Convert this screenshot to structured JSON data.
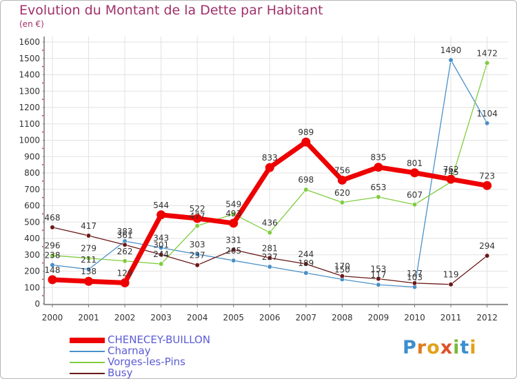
{
  "title": "Evolution du Montant de la Dette par Habitant",
  "subtitle": "(en €)",
  "brand": "Proxiti",
  "colors": {
    "title": "#a0306a",
    "legend_text": "#5b5bd6"
  },
  "chart_data": {
    "type": "line",
    "title": "Evolution du Montant de la Dette par Habitant",
    "ylabel": "(en €)",
    "xlabel": "",
    "x": [
      "2000",
      "2001",
      "2002",
      "2003",
      "2004",
      "2005",
      "2006",
      "2007",
      "2008",
      "2009",
      "2010",
      "2011",
      "2012"
    ],
    "ylim": [
      0,
      1600
    ],
    "yticks": [
      0,
      100,
      200,
      300,
      400,
      500,
      600,
      700,
      800,
      900,
      1000,
      1100,
      1200,
      1300,
      1400,
      1500,
      1600
    ],
    "legend_position": "bottom-left",
    "series": [
      {
        "name": "CHENECEY-BUILLON",
        "color": "#ee0000",
        "thick": true,
        "values": [
          148,
          138,
          129,
          544,
          522,
          493,
          833,
          989,
          756,
          835,
          801,
          762,
          723
        ],
        "labels": [
          "148",
          "138",
          "129",
          "544",
          "522",
          "493",
          "833",
          "989",
          "756",
          "835",
          "801",
          "762",
          "723"
        ]
      },
      {
        "name": "Charnay",
        "color": "#4a90c8",
        "thick": false,
        "values": [
          238,
          211,
          383,
          343,
          303,
          265,
          227,
          189,
          150,
          117,
          103,
          1490,
          1104
        ],
        "labels": [
          "238",
          "211",
          "383",
          "343",
          "303",
          "265",
          "227",
          "189",
          "150",
          "117",
          "103",
          "1490",
          "1104"
        ]
      },
      {
        "name": "Vorges-les-Pins",
        "color": "#80cc40",
        "thick": false,
        "values": [
          296,
          279,
          262,
          244,
          477,
          549,
          436,
          698,
          620,
          653,
          607,
          745,
          1472
        ],
        "labels": [
          "296",
          "279",
          "262",
          "244",
          "477",
          "549",
          "436",
          "698",
          "620",
          "653",
          "607",
          "745",
          "1472"
        ]
      },
      {
        "name": "Busy",
        "color": "#6b1818",
        "thick": false,
        "values": [
          468,
          417,
          361,
          301,
          237,
          331,
          281,
          244,
          170,
          153,
          127,
          119,
          294
        ],
        "labels": [
          "468",
          "417",
          "361",
          "301",
          "237",
          "331",
          "281",
          "244",
          "170",
          "153",
          "127",
          "119",
          "294"
        ]
      }
    ]
  }
}
